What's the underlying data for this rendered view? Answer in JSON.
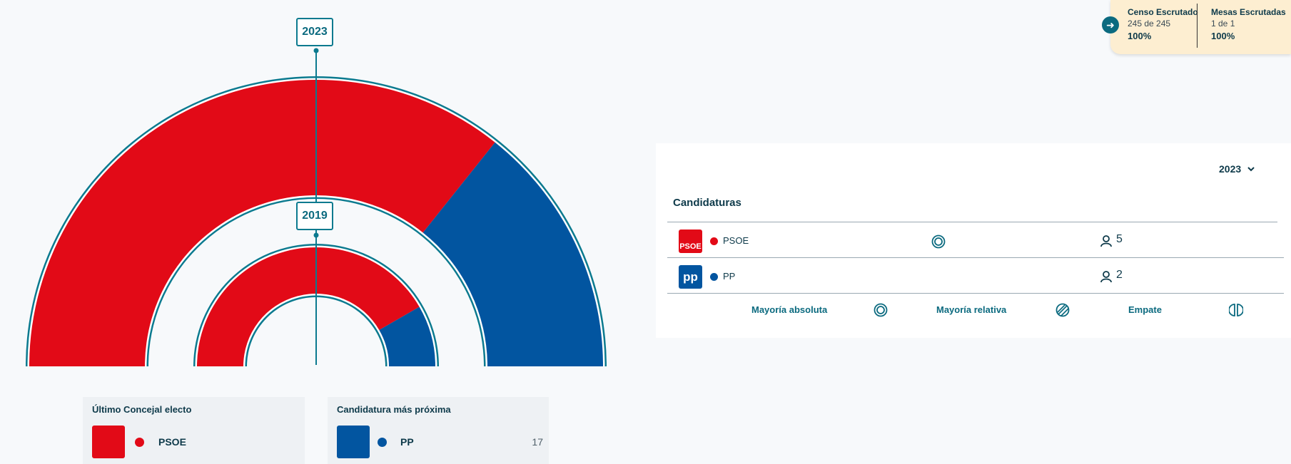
{
  "colors": {
    "psoe": "#e20a17",
    "pp": "#0255a0",
    "accent": "#0b7a8f"
  },
  "hemicycle": {
    "outer": {
      "year": "2023",
      "seats": [
        {
          "party": "PSOE",
          "value": 5
        },
        {
          "party": "PP",
          "value": 2
        }
      ]
    },
    "inner": {
      "year": "2019",
      "seats": [
        {
          "party": "PSOE",
          "value": 5
        },
        {
          "party": "PP",
          "value": 1
        }
      ]
    }
  },
  "last_elected": {
    "title": "Último Concejal electo",
    "party": "PSOE"
  },
  "closest": {
    "title": "Candidatura más próxima",
    "party": "PP",
    "value": "17"
  },
  "scrutiny": {
    "censo": {
      "label": "Censo Escrutado",
      "detail": "245 de 245",
      "percent": "100%"
    },
    "mesas": {
      "label": "Mesas Escrutadas",
      "detail": "1 de 1",
      "percent": "100%"
    }
  },
  "panel": {
    "selected_year": "2023",
    "heading": "Candidaturas",
    "rows": [
      {
        "party": "PSOE",
        "logo_text": "PSOE",
        "seats": "5",
        "absolute_majority": true
      },
      {
        "party": "PP",
        "logo_text": "pp",
        "seats": "2",
        "absolute_majority": false
      }
    ],
    "legend": {
      "absolute": "Mayoría absoluta",
      "relative": "Mayoría relativa",
      "tie": "Empate"
    }
  },
  "icons": {
    "arrow": "arrow-right-icon",
    "chevron": "chevron-down-icon",
    "majority": "double-circle-icon",
    "relative": "half-striped-circle-icon",
    "tie": "split-circle-icon",
    "person": "person-icon"
  }
}
